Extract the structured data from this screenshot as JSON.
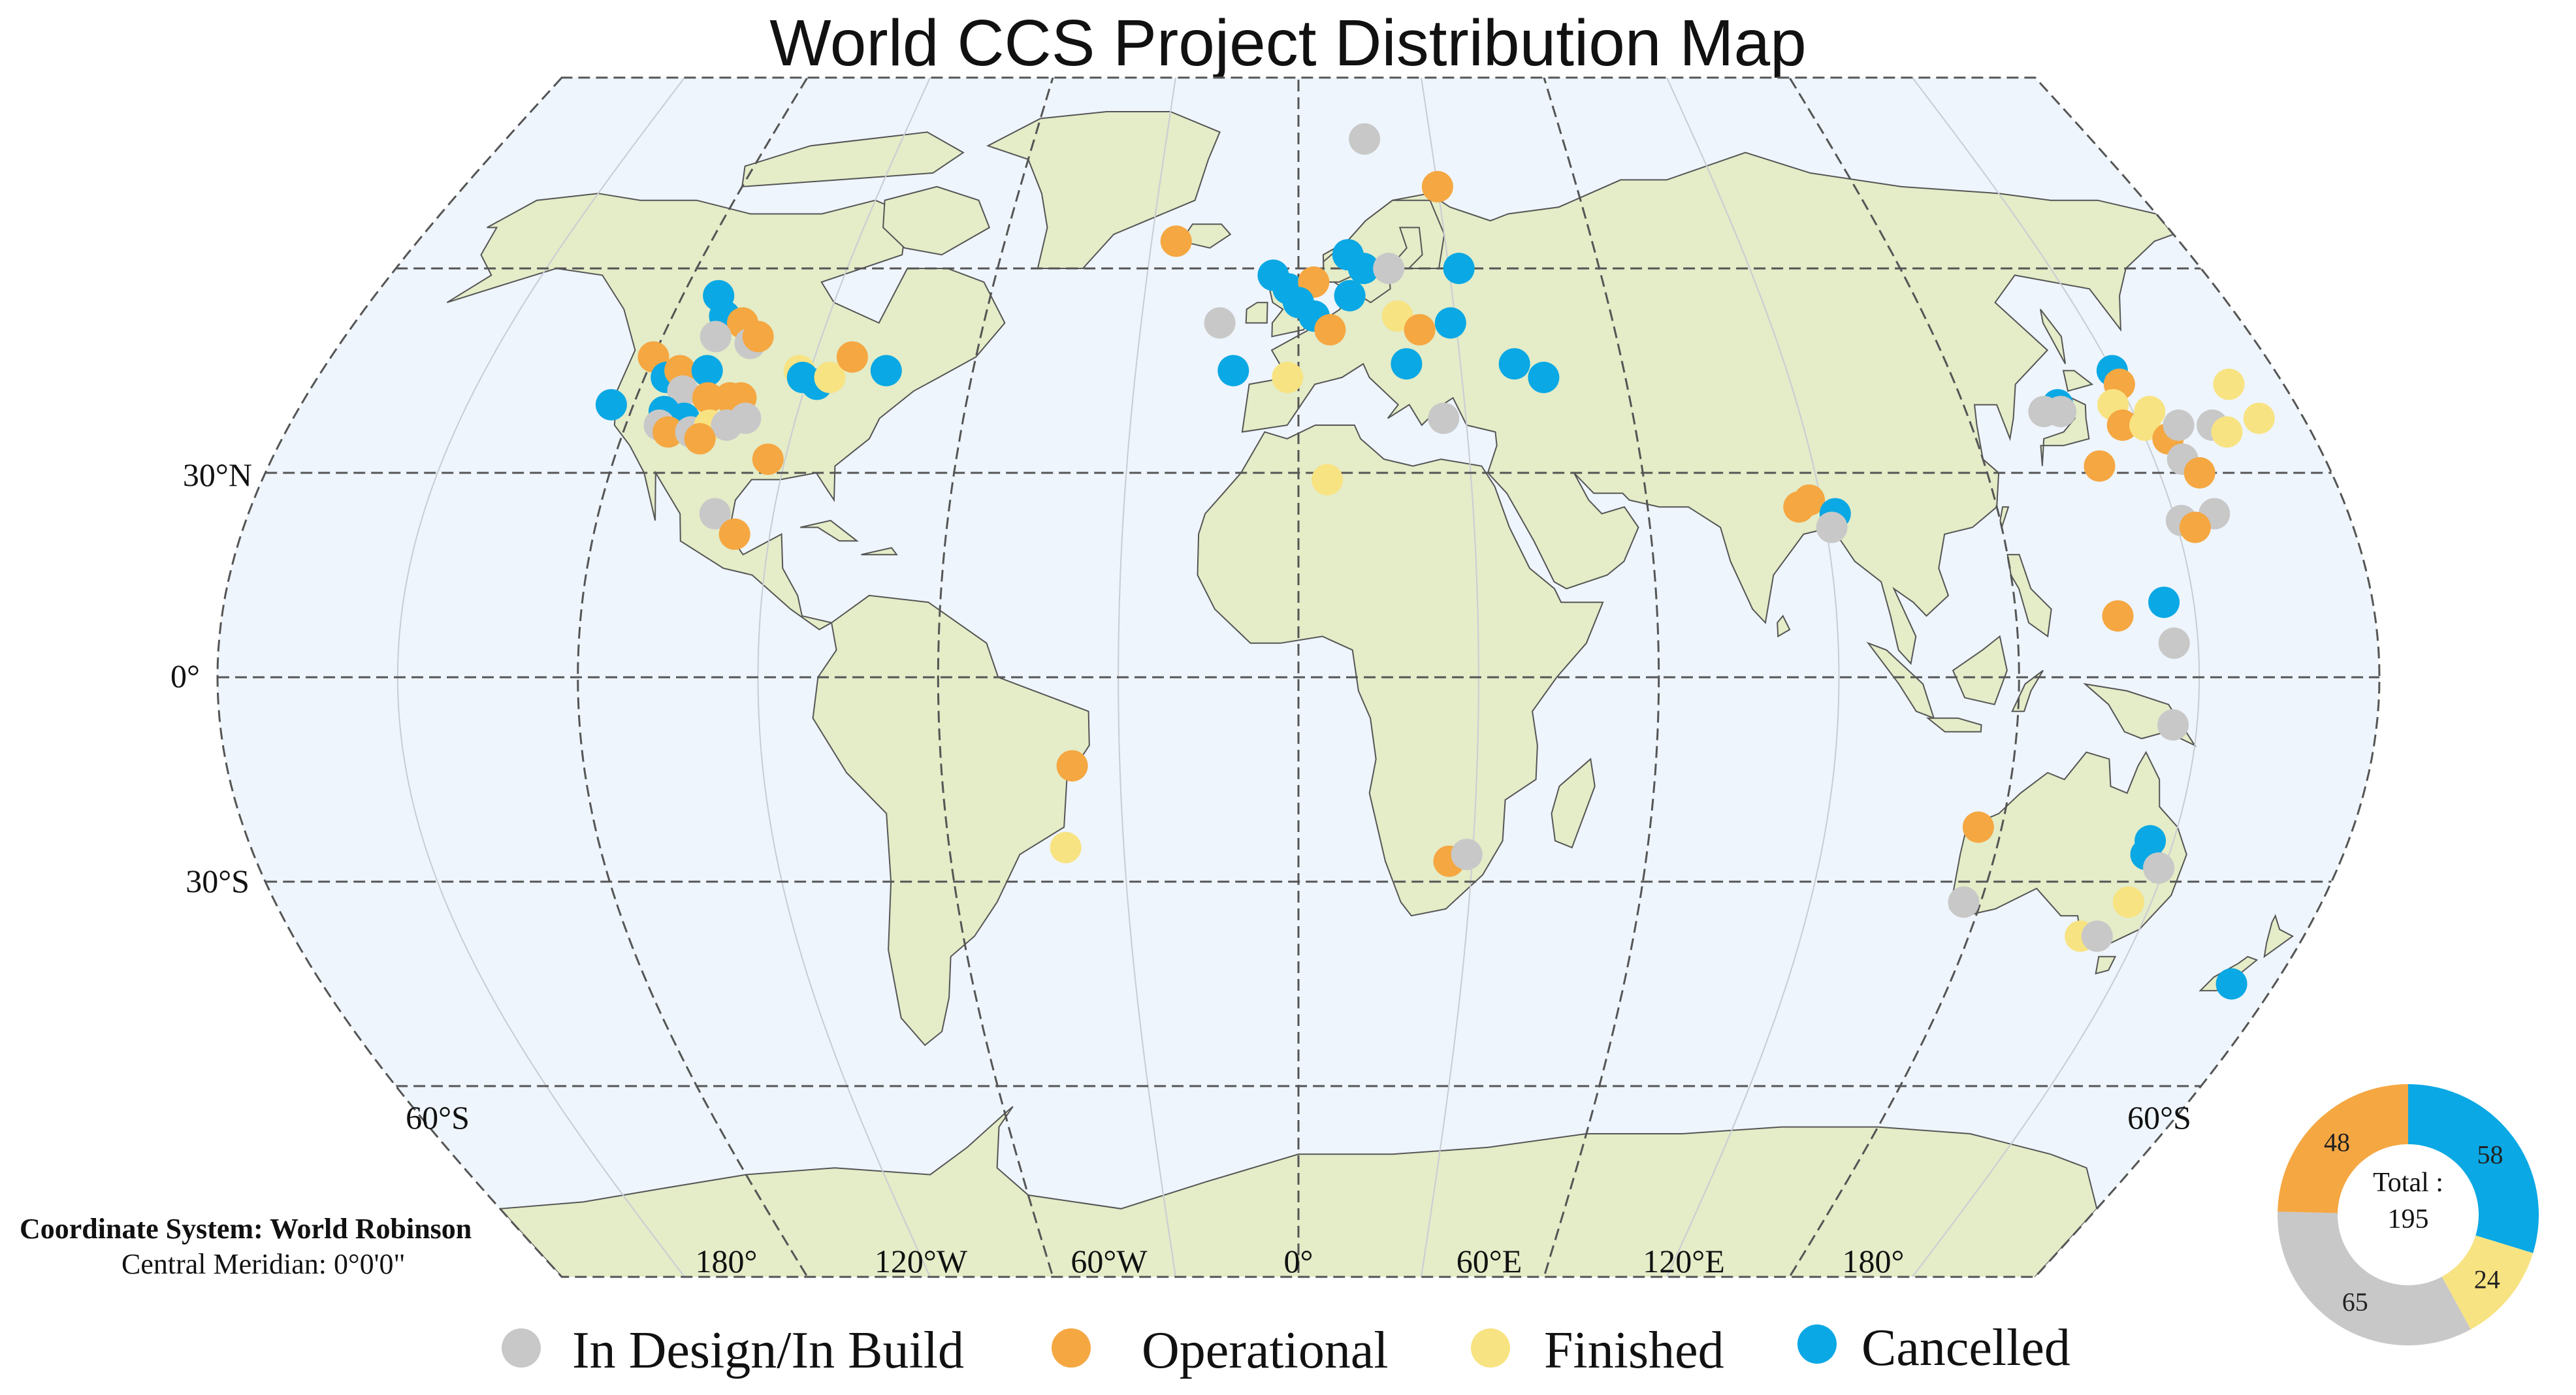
{
  "title": "World CCS Project Distribution Map",
  "map": {
    "projection": "Robinson",
    "background_color": "#eef5fc",
    "land_color": "#e4ecc8",
    "lat_labels": {
      "n30": "30°N",
      "eq": "0°",
      "s30": "30°S",
      "s60_left": "60°S",
      "s60_right": "60°S"
    },
    "lon_labels": {
      "w180": "180°",
      "w120": "120°W",
      "w60": "60°W",
      "zero": "0°",
      "e60": "60°E",
      "e120": "120°E",
      "e180": "180°"
    },
    "coordinate_system": {
      "title": "Coordinate System: World Robinson",
      "meridian": "Central Meridian: 0°0'0\""
    }
  },
  "legend": {
    "items": [
      {
        "label": "In Design/In Build",
        "color": "#c8c8c8"
      },
      {
        "label": "Operational",
        "color": "#f5a742"
      },
      {
        "label": "Finished",
        "color": "#f8e382"
      },
      {
        "label": "Cancelled",
        "color": "#0aa8e4"
      }
    ]
  },
  "chart_data": {
    "type": "pie",
    "total_label": "Total :",
    "total_value": "195",
    "slices": [
      {
        "status": "Cancelled",
        "value": 58,
        "color": "#0aa8e4"
      },
      {
        "status": "Finished",
        "value": 24,
        "color": "#f8e382"
      },
      {
        "status": "In Design/In Build",
        "value": 65,
        "color": "#c8c8c8"
      },
      {
        "status": "Operational",
        "value": 48,
        "color": "#f5a742"
      }
    ]
  },
  "projects": [
    {
      "status": "Cancelled",
      "lon": -113,
      "lat": 56
    },
    {
      "status": "Cancelled",
      "lon": -110,
      "lat": 53
    },
    {
      "status": "Operational",
      "lon": -106,
      "lat": 52
    },
    {
      "status": "In Design/In Build",
      "lon": -110,
      "lat": 50
    },
    {
      "status": "In Design/In Build",
      "lon": -103,
      "lat": 49
    },
    {
      "status": "Operational",
      "lon": -102,
      "lat": 50
    },
    {
      "status": "Operational",
      "lon": -120,
      "lat": 47
    },
    {
      "status": "Cancelled",
      "lon": -116,
      "lat": 44
    },
    {
      "status": "Operational",
      "lon": -114,
      "lat": 45
    },
    {
      "status": "Cancelled",
      "lon": -109,
      "lat": 45
    },
    {
      "status": "In Design/In Build",
      "lon": -112,
      "lat": 42
    },
    {
      "status": "Operational",
      "lon": -107,
      "lat": 41
    },
    {
      "status": "Operational",
      "lon": -103,
      "lat": 41
    },
    {
      "status": "Operational",
      "lon": -101,
      "lat": 41
    },
    {
      "status": "Cancelled",
      "lon": -114,
      "lat": 39
    },
    {
      "status": "Cancelled",
      "lon": -110,
      "lat": 38
    },
    {
      "status": "In Design/In Build",
      "lon": -114,
      "lat": 37
    },
    {
      "status": "Operational",
      "lon": -112,
      "lat": 36
    },
    {
      "status": "In Design/In Build",
      "lon": -108,
      "lat": 36
    },
    {
      "status": "Finished",
      "lon": -105,
      "lat": 37
    },
    {
      "status": "In Design/In Build",
      "lon": -102,
      "lat": 37
    },
    {
      "status": "Operational",
      "lon": -106,
      "lat": 35
    },
    {
      "status": "In Design/In Build",
      "lon": -99,
      "lat": 38
    },
    {
      "status": "Cancelled",
      "lon": -124,
      "lat": 40
    },
    {
      "status": "Finished",
      "lon": -92,
      "lat": 45
    },
    {
      "status": "Cancelled",
      "lon": -91,
      "lat": 44
    },
    {
      "status": "Cancelled",
      "lon": -88,
      "lat": 43
    },
    {
      "status": "Finished",
      "lon": -86,
      "lat": 44
    },
    {
      "status": "Operational",
      "lon": -83,
      "lat": 47
    },
    {
      "status": "Cancelled",
      "lon": -76,
      "lat": 45
    },
    {
      "status": "Operational",
      "lon": -93,
      "lat": 32
    },
    {
      "status": "In Design/In Build",
      "lon": -100,
      "lat": 24
    },
    {
      "status": "Operational",
      "lon": -96,
      "lat": 21
    },
    {
      "status": "Operational",
      "lon": -25,
      "lat": 64
    },
    {
      "status": "In Design/In Build",
      "lon": 15,
      "lat": 79
    },
    {
      "status": "Operational",
      "lon": 30,
      "lat": 72
    },
    {
      "status": "Cancelled",
      "lon": -5,
      "lat": 59
    },
    {
      "status": "Cancelled",
      "lon": -2,
      "lat": 57
    },
    {
      "status": "Cancelled",
      "lon": 10,
      "lat": 62
    },
    {
      "status": "Cancelled",
      "lon": 13,
      "lat": 60
    },
    {
      "status": "In Design/In Build",
      "lon": 18,
      "lat": 60
    },
    {
      "status": "Operational",
      "lon": 3,
      "lat": 58
    },
    {
      "status": "Cancelled",
      "lon": 0,
      "lat": 55
    },
    {
      "status": "Cancelled",
      "lon": 3,
      "lat": 53
    },
    {
      "status": "Cancelled",
      "lon": 10,
      "lat": 56
    },
    {
      "status": "In Design/In Build",
      "lon": -15,
      "lat": 52
    },
    {
      "status": "Finished",
      "lon": 19,
      "lat": 53
    },
    {
      "status": "Operational",
      "lon": 23,
      "lat": 51
    },
    {
      "status": "Cancelled",
      "lon": 29,
      "lat": 52
    },
    {
      "status": "Cancelled",
      "lon": 32,
      "lat": 60
    },
    {
      "status": "Operational",
      "lon": 6,
      "lat": 51
    },
    {
      "status": "Cancelled",
      "lon": -12,
      "lat": 45
    },
    {
      "status": "Finished",
      "lon": -2,
      "lat": 44
    },
    {
      "status": "Cancelled",
      "lon": 20,
      "lat": 46
    },
    {
      "status": "Cancelled",
      "lon": 40,
      "lat": 46
    },
    {
      "status": "Cancelled",
      "lon": 45,
      "lat": 44
    },
    {
      "status": "In Design/In Build",
      "lon": 26,
      "lat": 38
    },
    {
      "status": "Finished",
      "lon": 5,
      "lat": 29
    },
    {
      "status": "Operational",
      "lon": 86,
      "lat": 25
    },
    {
      "status": "Operational",
      "lon": 88,
      "lat": 26
    },
    {
      "status": "Cancelled",
      "lon": 92,
      "lat": 24
    },
    {
      "status": "In Design/In Build",
      "lon": 91,
      "lat": 22
    },
    {
      "status": "Operational",
      "lon": 137,
      "lat": 9
    },
    {
      "status": "Cancelled",
      "lon": 150,
      "lat": 45
    },
    {
      "status": "Operational",
      "lon": 150,
      "lat": 43
    },
    {
      "status": "Cancelled",
      "lon": 137,
      "lat": 40
    },
    {
      "status": "In Design/In Build",
      "lon": 134,
      "lat": 39
    },
    {
      "status": "In Design/In Build",
      "lon": 137,
      "lat": 39
    },
    {
      "status": "Finished",
      "lon": 147,
      "lat": 40
    },
    {
      "status": "Finished",
      "lon": 153,
      "lat": 39
    },
    {
      "status": "Operational",
      "lon": 147,
      "lat": 37
    },
    {
      "status": "Finished",
      "lon": 151,
      "lat": 37
    },
    {
      "status": "Operational",
      "lon": 154,
      "lat": 35
    },
    {
      "status": "In Design/In Build",
      "lon": 157,
      "lat": 37
    },
    {
      "status": "Operational",
      "lon": 140,
      "lat": 31
    },
    {
      "status": "In Design/In Build",
      "lon": 155,
      "lat": 32
    },
    {
      "status": "Operational",
      "lon": 157,
      "lat": 30
    },
    {
      "status": "In Design/In Build",
      "lon": 163,
      "lat": 37
    },
    {
      "status": "Finished",
      "lon": 165,
      "lat": 36
    },
    {
      "status": "Finished",
      "lon": 170,
      "lat": 43
    },
    {
      "status": "Finished",
      "lon": 172,
      "lat": 38
    },
    {
      "status": "In Design/In Build",
      "lon": 151,
      "lat": 23
    },
    {
      "status": "In Design/In Build",
      "lon": 157,
      "lat": 24
    },
    {
      "status": "Operational",
      "lon": 153,
      "lat": 22
    },
    {
      "status": "Cancelled",
      "lon": 145,
      "lat": 11
    },
    {
      "status": "In Design/In Build",
      "lon": 146,
      "lat": 5
    },
    {
      "status": "In Design/In Build",
      "lon": 146,
      "lat": -7
    },
    {
      "status": "Operational",
      "lon": 116,
      "lat": -22
    },
    {
      "status": "Cancelled",
      "lon": 146,
      "lat": -24
    },
    {
      "status": "Cancelled",
      "lon": 146,
      "lat": -26
    },
    {
      "status": "In Design/In Build",
      "lon": 149,
      "lat": -28
    },
    {
      "status": "Finished",
      "lon": 146,
      "lat": -33
    },
    {
      "status": "In Design/In Build",
      "lon": 117,
      "lat": -33
    },
    {
      "status": "Finished",
      "lon": 140,
      "lat": -38
    },
    {
      "status": "In Design/In Build",
      "lon": 143,
      "lat": -38
    },
    {
      "status": "Cancelled",
      "lon": 172,
      "lat": -45
    },
    {
      "status": "Operational",
      "lon": -38,
      "lat": -13
    },
    {
      "status": "Finished",
      "lon": -40,
      "lat": -25
    },
    {
      "status": "Operational",
      "lon": 26,
      "lat": -27
    },
    {
      "status": "In Design/In Build",
      "lon": 29,
      "lat": -26
    }
  ]
}
